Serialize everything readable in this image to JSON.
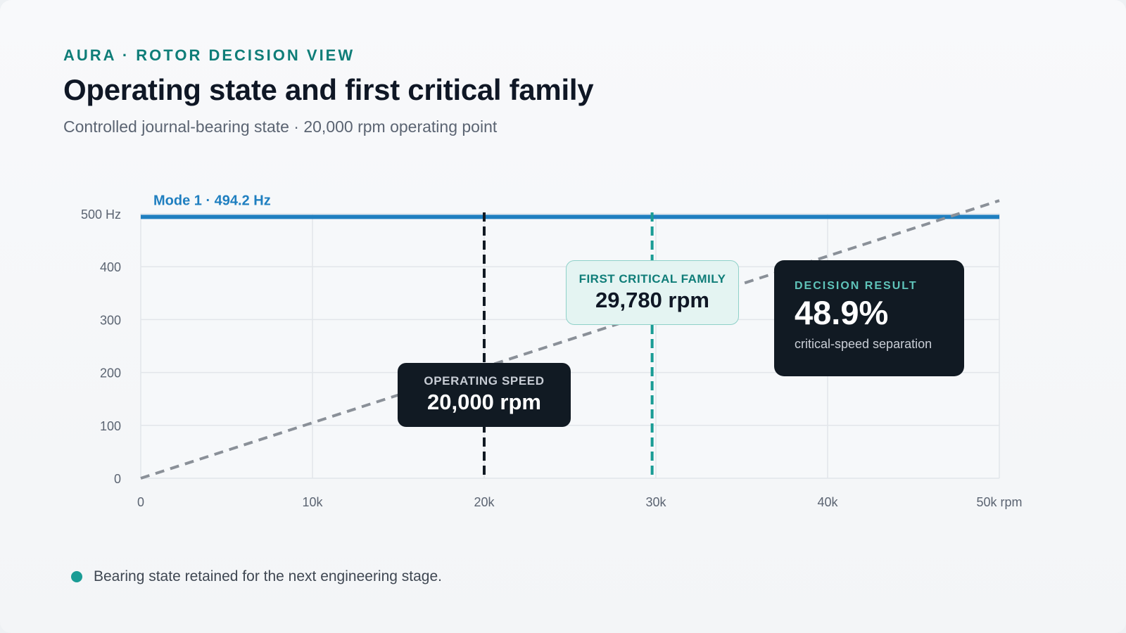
{
  "header": {
    "eyebrow": "AURA · ROTOR DECISION VIEW",
    "title": "Operating state and first critical family",
    "subtitle": "Controlled journal-bearing state · 20,000 rpm operating point"
  },
  "chart_data": {
    "type": "line",
    "x_ticks": [
      {
        "value": 0,
        "label": "0"
      },
      {
        "value": 10000,
        "label": "10k"
      },
      {
        "value": 20000,
        "label": "20k"
      },
      {
        "value": 30000,
        "label": "30k"
      },
      {
        "value": 40000,
        "label": "40k"
      },
      {
        "value": 50000,
        "label": "50k rpm"
      }
    ],
    "y_ticks": [
      {
        "value": 0,
        "label": "0"
      },
      {
        "value": 100,
        "label": "100"
      },
      {
        "value": 200,
        "label": "200"
      },
      {
        "value": 300,
        "label": "300"
      },
      {
        "value": 400,
        "label": "400"
      },
      {
        "value": 500,
        "label": "500 Hz"
      }
    ],
    "xlim": [
      0,
      50000
    ],
    "ylim": [
      0,
      500
    ],
    "grid": true,
    "series": [
      {
        "name": "Mode 1 · 494.2 Hz",
        "style": "solid",
        "color": "#1f7fc0",
        "x": [
          0,
          50000
        ],
        "y": [
          494.2,
          494.2
        ]
      },
      {
        "style": "dashed",
        "color": "#8a9098",
        "x": [
          0,
          50000
        ],
        "y": [
          0,
          525
        ]
      }
    ],
    "markers": [
      {
        "x": 20000,
        "style": "dashed",
        "color": "#111a23"
      },
      {
        "x": 29780,
        "style": "dashed",
        "color": "#1a9c95"
      }
    ]
  },
  "callouts": {
    "operating": {
      "label": "OPERATING SPEED",
      "value": "20,000 rpm"
    },
    "first_critical": {
      "label": "FIRST CRITICAL FAMILY",
      "value": "29,780 rpm"
    }
  },
  "decision": {
    "label": "DECISION RESULT",
    "value": "48.9%",
    "sub": "critical-speed separation"
  },
  "footer": {
    "status_color": "#1a9c95",
    "text": "Bearing state retained for the next engineering stage."
  }
}
